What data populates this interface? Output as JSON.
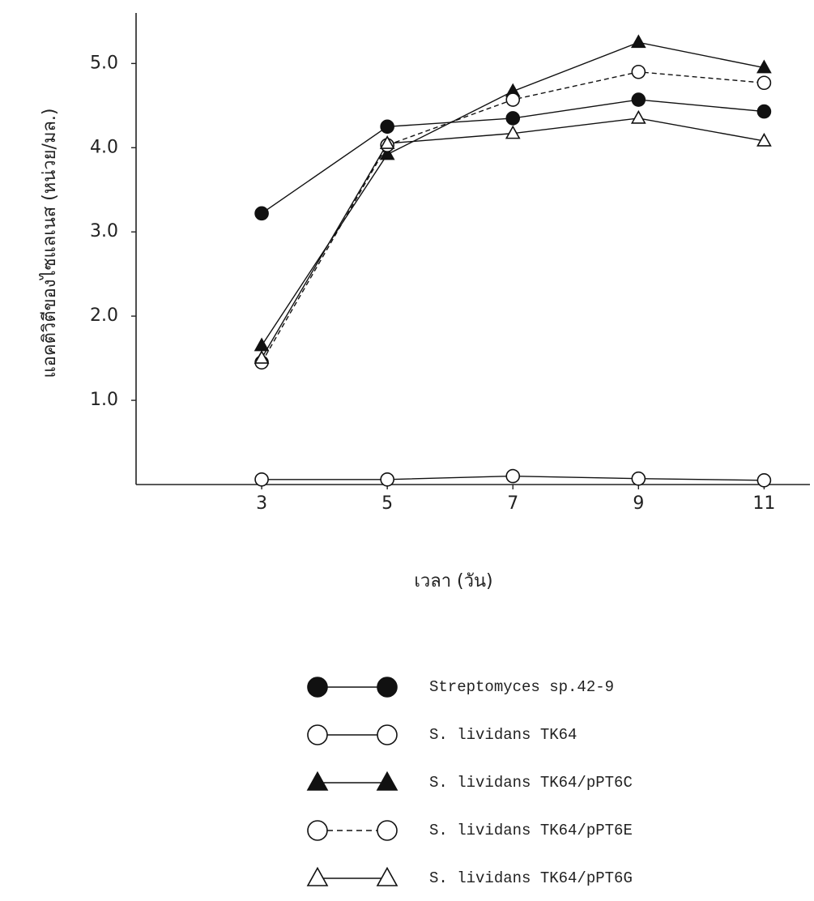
{
  "chart_data": {
    "type": "line",
    "y_label": "แอคติวิตีของไซแลเนส (หน่วย/มล.)",
    "x_label": "เวลา (วัน)",
    "x": [
      3,
      5,
      7,
      9,
      11
    ],
    "xlim": [
      1,
      11.73
    ],
    "xticks": [
      3,
      5,
      7,
      9,
      11
    ],
    "ylim": [
      0,
      5.6
    ],
    "yticks": [
      {
        "value": 1,
        "label": "1.0"
      },
      {
        "value": 2,
        "label": "2.0"
      },
      {
        "value": 3,
        "label": "3.0"
      },
      {
        "value": 4,
        "label": "4.0"
      },
      {
        "value": 5,
        "label": "5.0"
      }
    ],
    "series": [
      {
        "name": "Streptomyces sp.42-9",
        "color": "#111111",
        "marker": "circle",
        "filled": true,
        "dashed": false,
        "values": [
          3.22,
          4.25,
          4.35,
          4.57,
          4.43
        ]
      },
      {
        "name": "S. lividans TK64",
        "color": "#111111",
        "marker": "circle",
        "filled": false,
        "dashed": false,
        "values": [
          0.06,
          0.06,
          0.1,
          0.07,
          0.05
        ]
      },
      {
        "name": "S. lividans TK64/pPT6C",
        "color": "#111111",
        "marker": "triangle",
        "filled": true,
        "dashed": false,
        "values": [
          1.65,
          3.92,
          4.67,
          5.25,
          4.95
        ]
      },
      {
        "name": "S. lividans TK64/pPT6E",
        "color": "#111111",
        "marker": "circle",
        "filled": false,
        "dashed": true,
        "values": [
          1.45,
          4.03,
          4.57,
          4.9,
          4.77
        ]
      },
      {
        "name": "S. lividans TK64/pPT6G",
        "color": "#111111",
        "marker": "triangle",
        "filled": false,
        "dashed": false,
        "values": [
          1.5,
          4.05,
          4.17,
          4.35,
          4.08
        ]
      }
    ]
  }
}
